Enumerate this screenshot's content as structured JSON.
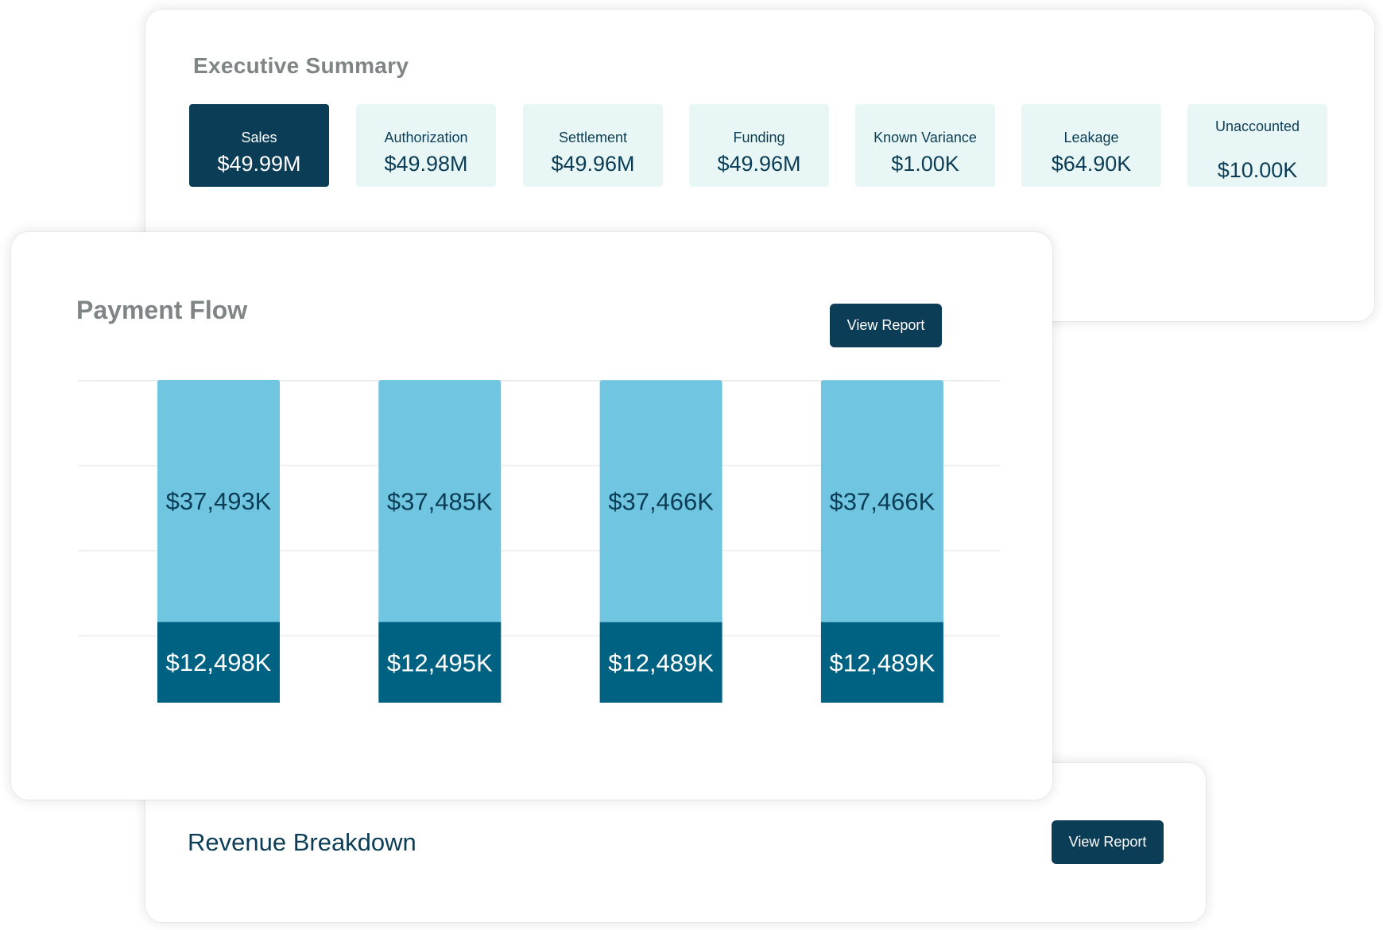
{
  "executive_summary": {
    "title": "Executive Summary",
    "tiles": [
      {
        "label": "Sales",
        "value": "$49.99M",
        "selected": true
      },
      {
        "label": "Authorization",
        "value": "$49.98M"
      },
      {
        "label": "Settlement",
        "value": "$49.96M"
      },
      {
        "label": "Funding",
        "value": "$49.96M"
      },
      {
        "label": "Known Variance",
        "value": "$1.00K"
      },
      {
        "label": "Leakage",
        "value": "$64.90K"
      },
      {
        "label": "Unaccounted",
        "value": "$10.00K"
      }
    ]
  },
  "payment_flow": {
    "title": "Payment Flow",
    "view_report_label": "View Report"
  },
  "revenue_breakdown": {
    "title": "Revenue Breakdown",
    "view_report_label": "View Report"
  },
  "colors": {
    "brand_dark": "#0c3d57",
    "tile_bg": "#e8f7f5",
    "bar_light": "#70c6e1",
    "bar_dark": "#006283"
  },
  "chart_data": {
    "type": "bar",
    "stacked": true,
    "categories": [
      "",
      "",
      "",
      ""
    ],
    "series": [
      {
        "values": [
          12498,
          12495,
          12489,
          12489
        ],
        "labels": [
          "$12,498K",
          "$12,495K",
          "$12,489K",
          "$12,489K"
        ],
        "color": "#006283"
      },
      {
        "values": [
          37493,
          37485,
          37466,
          37466
        ],
        "labels": [
          "$37,493K",
          "$37,485K",
          "$37,466K",
          "$37,466K"
        ],
        "color": "#70c6e1"
      }
    ],
    "grid": true,
    "legend": false
  }
}
